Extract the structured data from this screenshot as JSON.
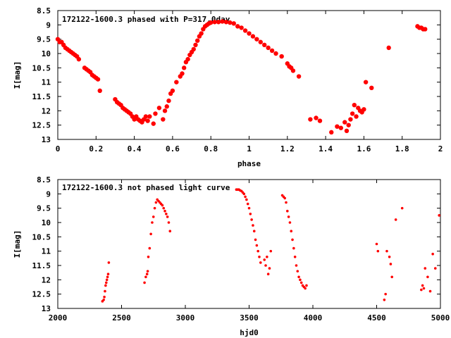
{
  "chart_data": [
    {
      "type": "scatter",
      "title": "172122-1600.3 phased with P=317.0day",
      "xlabel": "phase",
      "ylabel": "I[mag]",
      "xlim": [
        0,
        2
      ],
      "ylim": [
        8.5,
        13
      ],
      "y_inverted": true,
      "x_ticks": [
        "0",
        "0.2",
        "0.4",
        "0.6",
        "0.8",
        "1",
        "1.2",
        "1.4",
        "1.6",
        "1.8",
        "2"
      ],
      "y_ticks": [
        "8.5",
        "9",
        "9.5",
        "10",
        "10.5",
        "11",
        "11.5",
        "12",
        "12.5",
        "13"
      ],
      "marker_color": "#ff0000",
      "series": [
        {
          "x": [
            0.0,
            0.01,
            0.02,
            0.03,
            0.04,
            0.05,
            0.06,
            0.07,
            0.08,
            0.09,
            0.1,
            0.11,
            0.14,
            0.15,
            0.16,
            0.17,
            0.18,
            0.19,
            0.2,
            0.21,
            0.22,
            0.3,
            0.31,
            0.32,
            0.33,
            0.34,
            0.35,
            0.36,
            0.37,
            0.38,
            0.39,
            0.4,
            0.41,
            0.42,
            0.43,
            0.44,
            0.45,
            0.46,
            0.47,
            0.48,
            0.5,
            0.51,
            0.53,
            0.55,
            0.56,
            0.57,
            0.58,
            0.59,
            0.6,
            0.62,
            0.64,
            0.65,
            0.66,
            0.67,
            0.68,
            0.69,
            0.7,
            0.71,
            0.72,
            0.73,
            0.74,
            0.75,
            0.76,
            0.77,
            0.78,
            0.79,
            0.8,
            0.82,
            0.84,
            0.86,
            0.88,
            0.9,
            0.92,
            0.94,
            0.96,
            0.98,
            1.0,
            1.02,
            1.04,
            1.06,
            1.08,
            1.1,
            1.12,
            1.14,
            1.17,
            1.2,
            1.21,
            1.22,
            1.23,
            1.26,
            1.32,
            1.35,
            1.37,
            1.43,
            1.46,
            1.48,
            1.5,
            1.51,
            1.52,
            1.53,
            1.54,
            1.55,
            1.56,
            1.57,
            1.58,
            1.59,
            1.6,
            1.61,
            1.64,
            1.73,
            1.88,
            1.89,
            1.9,
            1.91,
            1.92
          ],
          "y": [
            9.5,
            9.6,
            9.6,
            9.7,
            9.8,
            9.85,
            9.9,
            9.95,
            10.0,
            10.05,
            10.1,
            10.2,
            10.5,
            10.55,
            10.6,
            10.65,
            10.75,
            10.8,
            10.85,
            10.9,
            11.3,
            11.6,
            11.7,
            11.75,
            11.8,
            11.9,
            11.95,
            12.0,
            12.05,
            12.1,
            12.2,
            12.3,
            12.2,
            12.3,
            12.35,
            12.4,
            12.3,
            12.2,
            12.35,
            12.2,
            12.45,
            12.1,
            11.9,
            12.3,
            12.0,
            11.85,
            11.65,
            11.4,
            11.3,
            11.0,
            10.8,
            10.7,
            10.5,
            10.3,
            10.2,
            10.05,
            9.95,
            9.85,
            9.7,
            9.55,
            9.4,
            9.3,
            9.15,
            9.05,
            9.0,
            8.95,
            8.92,
            8.9,
            8.9,
            8.88,
            8.9,
            8.92,
            8.95,
            9.05,
            9.1,
            9.2,
            9.3,
            9.4,
            9.5,
            9.6,
            9.7,
            9.8,
            9.9,
            10.0,
            10.1,
            10.35,
            10.45,
            10.5,
            10.6,
            10.8,
            12.3,
            12.25,
            12.35,
            12.75,
            12.55,
            12.6,
            12.4,
            12.7,
            12.5,
            12.3,
            12.1,
            11.8,
            12.2,
            11.9,
            12.0,
            12.05,
            11.95,
            11.0,
            11.2,
            9.8,
            9.05,
            9.1,
            9.1,
            9.15,
            9.15
          ]
        }
      ]
    },
    {
      "type": "scatter",
      "title": "172122-1600.3 not phased light curve",
      "xlabel": "hjd0",
      "ylabel": "I[mag]",
      "xlim": [
        2000,
        5000
      ],
      "ylim": [
        8.5,
        13
      ],
      "y_inverted": true,
      "x_ticks": [
        "2000",
        "2500",
        "3000",
        "3500",
        "4000",
        "4500",
        "5000"
      ],
      "y_ticks": [
        "8.5",
        "9",
        "9.5",
        "10",
        "10.5",
        "11",
        "11.5",
        "12",
        "12.5",
        "13"
      ],
      "marker_color": "#ff0000",
      "series": [
        {
          "x": [
            2350,
            2360,
            2365,
            2370,
            2375,
            2380,
            2385,
            2390,
            2395,
            2400,
            2680,
            2690,
            2700,
            2705,
            2710,
            2720,
            2730,
            2740,
            2750,
            2760,
            2770,
            2780,
            2790,
            2800,
            2810,
            2820,
            2830,
            2840,
            2850,
            2860,
            2870,
            2880,
            3400,
            3410,
            3420,
            3430,
            3440,
            3450,
            3460,
            3470,
            3480,
            3490,
            3500,
            3510,
            3520,
            3530,
            3540,
            3550,
            3560,
            3570,
            3580,
            3590,
            3620,
            3630,
            3640,
            3650,
            3660,
            3670,
            3760,
            3770,
            3780,
            3790,
            3800,
            3810,
            3820,
            3830,
            3840,
            3850,
            3860,
            3870,
            3880,
            3890,
            3900,
            3910,
            3920,
            3930,
            3940,
            3950,
            4500,
            4510,
            4560,
            4570,
            4580,
            4600,
            4610,
            4620,
            4650,
            4700,
            4850,
            4860,
            4870,
            4880,
            4900,
            4920,
            4940,
            4960,
            4990
          ],
          "y": [
            12.75,
            12.7,
            12.6,
            12.4,
            12.2,
            12.1,
            12.0,
            11.9,
            11.8,
            11.4,
            12.1,
            11.9,
            11.8,
            11.7,
            11.2,
            10.9,
            10.4,
            10.0,
            9.8,
            9.5,
            9.3,
            9.2,
            9.25,
            9.3,
            9.35,
            9.4,
            9.5,
            9.6,
            9.7,
            9.8,
            10.0,
            10.3,
            8.85,
            8.85,
            8.85,
            8.88,
            8.9,
            8.95,
            9.0,
            9.1,
            9.2,
            9.35,
            9.5,
            9.7,
            9.9,
            10.1,
            10.3,
            10.6,
            10.8,
            11.0,
            11.2,
            11.4,
            11.3,
            11.5,
            11.2,
            11.8,
            11.6,
            11.0,
            9.05,
            9.1,
            9.15,
            9.3,
            9.6,
            9.8,
            10.0,
            10.3,
            10.6,
            10.9,
            11.2,
            11.5,
            11.7,
            11.9,
            12.0,
            12.1,
            12.2,
            12.25,
            12.3,
            12.2,
            10.75,
            11.0,
            12.7,
            12.5,
            11.0,
            11.2,
            11.45,
            11.9,
            9.9,
            9.5,
            12.35,
            12.2,
            12.3,
            11.6,
            11.9,
            12.4,
            11.1,
            11.6,
            9.75
          ]
        }
      ]
    }
  ]
}
